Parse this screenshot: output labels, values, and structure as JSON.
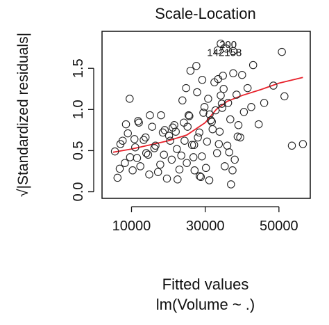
{
  "chart_data": {
    "type": "scatter",
    "title": "Scale-Location",
    "xlabel": "Fitted values",
    "xsublabel": "lm(Volume ~ .)",
    "ylabel": "√|Standardized residuals|",
    "xlim": [
      2000,
      58500
    ],
    "ylim": [
      -0.08,
      1.95
    ],
    "x_ticks": [
      10000,
      30000,
      50000
    ],
    "x_tick_labels": [
      "10000",
      "30000",
      "50000"
    ],
    "y_ticks": [
      0.0,
      0.5,
      1.0,
      1.5
    ],
    "y_tick_labels": [
      "0.0",
      "0.5",
      "1.0",
      "1.5"
    ],
    "grid": false,
    "legend": "none",
    "colors": {
      "points": "#222222",
      "smooth": "#e8202a",
      "axes": "#111111"
    },
    "smooth_line": {
      "x": [
        5000,
        10000,
        15000,
        20000,
        25000,
        30000,
        33000,
        36000,
        40000,
        45000,
        50000,
        56500
      ],
      "y": [
        0.48,
        0.52,
        0.57,
        0.62,
        0.69,
        0.84,
        1.0,
        1.1,
        1.17,
        1.24,
        1.32,
        1.39
      ]
    },
    "points": {
      "x": [
        5500,
        6200,
        7000,
        7600,
        8200,
        9000,
        9600,
        10300,
        11000,
        11800,
        12400,
        13300,
        14000,
        14800,
        15600,
        16500,
        17200,
        18000,
        18800,
        19600,
        20200,
        20900,
        21600,
        22300,
        23000,
        23800,
        24400,
        25000,
        25700,
        26400,
        27100,
        27800,
        28400,
        29100,
        29800,
        30500,
        31100,
        31800,
        32500,
        33200,
        33900,
        34600,
        35300,
        36000,
        36800,
        37600,
        38500,
        39500,
        40500,
        41500,
        43000,
        44500,
        46000,
        48500,
        51500,
        53500,
        56500,
        9500,
        12000,
        15000,
        17800,
        20500,
        23500,
        26000,
        28500,
        31500,
        34500,
        37000,
        40000,
        42500,
        8500,
        11500,
        13800,
        16200,
        18500,
        21200,
        24200,
        27000,
        29500,
        32000,
        35000,
        38000,
        6800,
        10800,
        14500,
        19000,
        22500,
        25500,
        28000,
        30800,
        33500,
        36500,
        39000,
        22000,
        26800,
        30200,
        34200,
        38800,
        27600,
        32800,
        25200,
        29200,
        33700,
        36200,
        24800,
        28800,
        31200,
        34800,
        37400
      ],
      "y": [
        0.49,
        0.17,
        0.58,
        0.62,
        0.35,
        0.71,
        0.42,
        0.26,
        0.54,
        0.86,
        0.31,
        0.63,
        0.47,
        0.21,
        0.79,
        0.56,
        0.24,
        0.93,
        0.45,
        0.16,
        0.68,
        0.39,
        0.81,
        0.52,
        0.27,
        1.11,
        0.62,
        0.35,
        0.92,
        0.57,
        0.26,
        1.21,
        0.72,
        0.43,
        1.03,
        0.61,
        0.14,
        0.85,
        1.33,
        0.47,
        0.73,
        1.02,
        0.31,
        0.56,
        0.88,
        1.44,
        1.18,
        0.66,
        0.97,
        1.26,
        1.54,
        0.82,
        1.08,
        1.29,
        1.16,
        0.56,
        0.58,
        1.13,
        0.84,
        0.93,
        0.33,
        0.62,
        0.44,
        1.47,
        0.19,
        0.87,
        1.07,
        0.09,
        1.42,
        1.03,
        0.82,
        0.41,
        0.66,
        0.53,
        0.72,
        0.78,
        0.84,
        0.57,
        0.96,
        0.76,
        1.25,
        0.39,
        0.28,
        0.64,
        0.45,
        0.75,
        0.15,
        0.93,
        0.66,
        1.13,
        1.37,
        0.48,
        0.81,
        0.73,
        0.42,
        0.29,
        1.17,
        0.67,
        1.53,
        0.99,
        0.79,
        1.36,
        0.58,
        1.08,
        1.26,
        0.18,
        0.94,
        1.41,
        0.26
      ]
    },
    "outliers": [
      {
        "x": 50800,
        "y": 1.7
      },
      {
        "x": 34200,
        "y": 1.8
      },
      {
        "x": 33400,
        "y": 1.72
      },
      {
        "x": 35700,
        "y": 1.74
      },
      {
        "x": 37600,
        "y": 1.71
      }
    ],
    "annotations": [
      {
        "text": "200",
        "x": 36200,
        "y": 1.79
      },
      {
        "text": "142158",
        "x": 35200,
        "y": 1.69
      }
    ]
  }
}
